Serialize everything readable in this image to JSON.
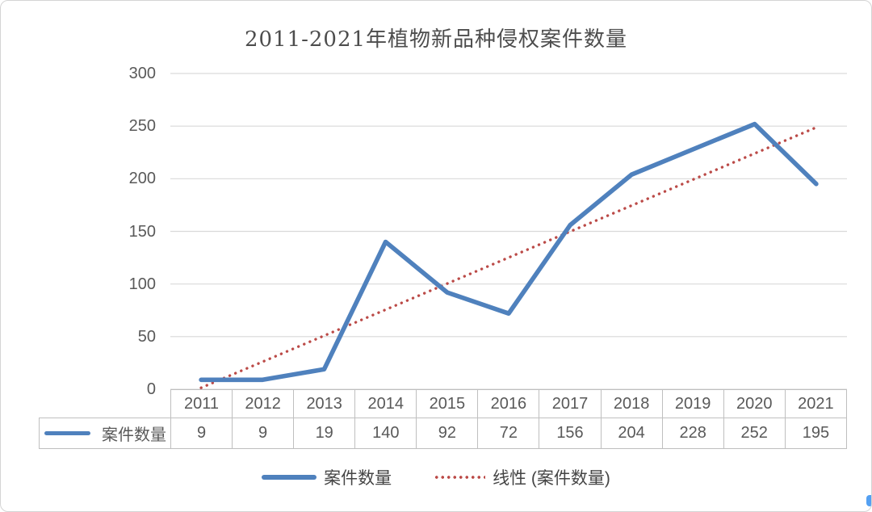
{
  "chart_data": {
    "type": "line",
    "title": "2011-2021年植物新品种侵权案件数量",
    "categories": [
      "2011",
      "2012",
      "2013",
      "2014",
      "2015",
      "2016",
      "2017",
      "2018",
      "2019",
      "2020",
      "2021"
    ],
    "series": [
      {
        "name": "案件数量",
        "values": [
          9,
          9,
          19,
          140,
          92,
          72,
          156,
          204,
          228,
          252,
          195
        ],
        "color": "#4f81bd"
      }
    ],
    "trendline": {
      "name": "线性 (案件数量)",
      "kind": "linear",
      "color": "#bb4a47"
    },
    "ylim": [
      0,
      300
    ],
    "yticks": [
      0,
      50,
      100,
      150,
      200,
      250,
      300
    ],
    "xlabel": "",
    "ylabel": "",
    "grid": true,
    "legend_position": "bottom"
  },
  "table": {
    "row_header": "案件数量",
    "columns": [
      "2011",
      "2012",
      "2013",
      "2014",
      "2015",
      "2016",
      "2017",
      "2018",
      "2019",
      "2020",
      "2021"
    ],
    "values": [
      "9",
      "9",
      "19",
      "140",
      "92",
      "72",
      "156",
      "204",
      "228",
      "252",
      "195"
    ]
  },
  "legend": {
    "series_label": "案件数量",
    "trend_label": "线性 (案件数量)"
  },
  "colors": {
    "series": "#4f81bd",
    "trend": "#bb4a47",
    "grid": "#d9d9d9",
    "table_border": "#bfbfbf",
    "text": "#595959",
    "edge_marker": "#54a0f2"
  }
}
